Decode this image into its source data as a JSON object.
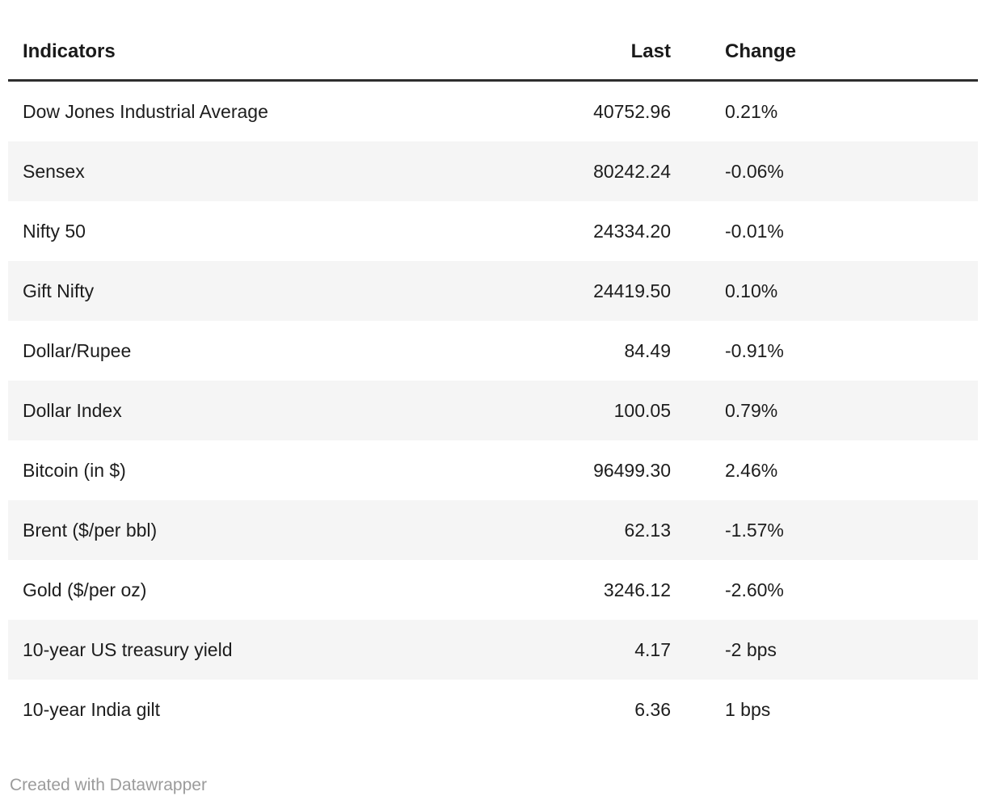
{
  "chart_data": {
    "type": "table",
    "title": "",
    "columns": [
      "Indicators",
      "Last",
      "Change"
    ],
    "rows": [
      [
        "Dow Jones Industrial Average",
        "40752.96",
        "0.21%"
      ],
      [
        "Sensex",
        "80242.24",
        "-0.06%"
      ],
      [
        "Nifty 50",
        "24334.20",
        "-0.01%"
      ],
      [
        "Gift Nifty",
        "24419.50",
        "0.10%"
      ],
      [
        "Dollar/Rupee",
        "84.49",
        "-0.91%"
      ],
      [
        "Dollar Index",
        "100.05",
        "0.79%"
      ],
      [
        "Bitcoin (in $)",
        "96499.30",
        "2.46%"
      ],
      [
        "Brent ($/per bbl)",
        "62.13",
        "-1.57%"
      ],
      [
        "Gold ($/per oz)",
        "3246.12",
        "-2.60%"
      ],
      [
        "10-year US treasury yield",
        "4.17",
        "-2 bps"
      ],
      [
        "10-year India gilt",
        "6.36",
        "1 bps"
      ]
    ],
    "layout": {
      "striped_rows": "even",
      "header_rule": true,
      "last_column_align": "right",
      "change_column_align": "left"
    }
  },
  "footer": {
    "credit": "Created with Datawrapper"
  },
  "colors": {
    "background": "#ffffff",
    "text": "#1d1d1d",
    "header_text": "#1a1a1a",
    "header_rule": "#2e2e2e",
    "row_stripe": "#f5f5f5",
    "footer_text": "#9b9b9b"
  }
}
